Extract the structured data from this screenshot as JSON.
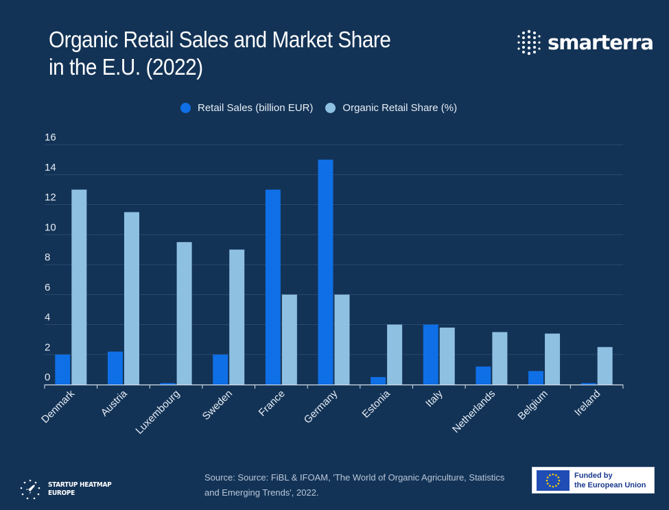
{
  "header": {
    "title_line1": "Organic Retail Sales and Market Share",
    "title_line2": "in the E.U. (2022)",
    "brand": "smarterra"
  },
  "colors": {
    "background": "#133356",
    "sales": "#0f6fe6",
    "share": "#8ec0e2",
    "grid": "#2b4a6e",
    "axis_text": "#e6edf5"
  },
  "chart_data": {
    "type": "bar",
    "categories": [
      "Denmark",
      "Austria",
      "Luxembourg",
      "Sweden",
      "France",
      "Germany",
      "Estonia",
      "Italy",
      "Netherlands",
      "Belgium",
      "Ireland"
    ],
    "series": [
      {
        "name": "Retail Sales (billion EUR)",
        "values": [
          2.0,
          2.2,
          0.1,
          2.0,
          13.0,
          15.0,
          0.5,
          4.0,
          1.2,
          0.9,
          0.1
        ]
      },
      {
        "name": "Organic Retail Share (%)",
        "values": [
          13.0,
          11.5,
          9.5,
          9.0,
          6.0,
          6.0,
          4.0,
          3.8,
          3.5,
          3.4,
          2.5
        ]
      }
    ],
    "ylim": [
      0,
      16
    ],
    "yticks": [
      0,
      2,
      4,
      6,
      8,
      10,
      12,
      14,
      16
    ],
    "grid": true,
    "legend_position": "top"
  },
  "footer": {
    "source": "Source:  Source: FiBL & IFOAM, 'The World of Organic Agriculture, Statistics and Emerging Trends', 2022.",
    "startup_line1": "STARTUP HEATMAP",
    "startup_line2": "EUROPE",
    "eu_line1": "Funded by",
    "eu_line2": "the European Union"
  }
}
